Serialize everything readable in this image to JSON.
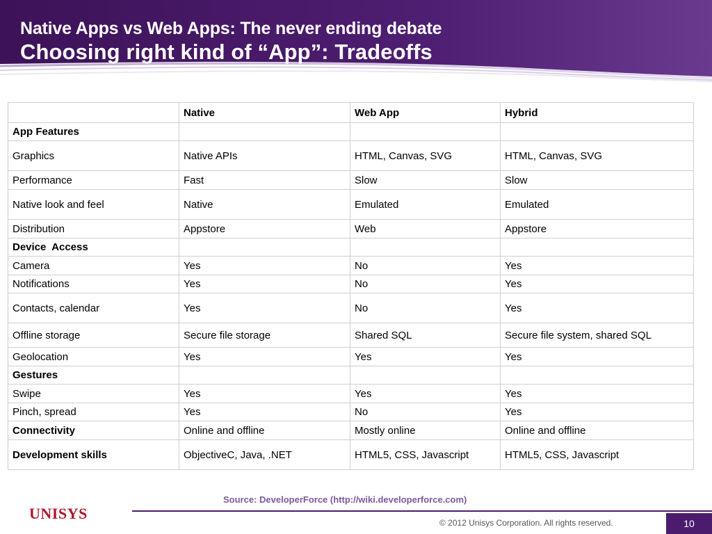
{
  "header": {
    "title_line1": "Native Apps vs Web Apps: The never ending debate",
    "title_line2": "Choosing right kind of “App”: Tradeoffs"
  },
  "table": {
    "headers": [
      "",
      "Native",
      "Web App",
      "Hybrid"
    ],
    "rows": [
      {
        "cells": [
          "App Features",
          "",
          "",
          ""
        ],
        "section": true
      },
      {
        "cells": [
          "Graphics",
          "Native APIs",
          "HTML, Canvas, SVG",
          "HTML, Canvas, SVG"
        ]
      },
      {
        "cells": [
          "Performance",
          "Fast",
          "Slow",
          "Slow"
        ]
      },
      {
        "cells": [
          "Native look and feel",
          "Native",
          "Emulated",
          "Emulated"
        ]
      },
      {
        "cells": [
          "Distribution",
          "Appstore",
          "Web",
          "Appstore"
        ]
      },
      {
        "cells": [
          "Device  Access",
          "",
          "",
          ""
        ],
        "section": true
      },
      {
        "cells": [
          "Camera",
          "Yes",
          "No",
          "Yes"
        ]
      },
      {
        "cells": [
          "Notifications",
          "Yes",
          "No",
          "Yes"
        ]
      },
      {
        "cells": [
          "Contacts, calendar",
          "Yes",
          "No",
          "Yes"
        ]
      },
      {
        "cells": [
          "Offline storage",
          "Secure file storage",
          "Shared SQL",
          "Secure file system, shared SQL"
        ]
      },
      {
        "cells": [
          "Geolocation",
          "Yes",
          "Yes",
          "Yes"
        ]
      },
      {
        "cells": [
          "Gestures",
          "",
          "",
          ""
        ],
        "section": true
      },
      {
        "cells": [
          "Swipe",
          "Yes",
          "Yes",
          "Yes"
        ]
      },
      {
        "cells": [
          "Pinch, spread",
          "Yes",
          "No",
          "Yes"
        ]
      },
      {
        "cells": [
          "Connectivity",
          "Online and offline",
          "Mostly online",
          "Online and offline"
        ],
        "section": true
      },
      {
        "cells": [
          "Development skills",
          "ObjectiveC, Java, .NET",
          "HTML5, CSS, Javascript",
          "HTML5, CSS, Javascript"
        ],
        "section": true
      }
    ]
  },
  "footer": {
    "source": "Source: DeveloperForce (http://wiki.developerforce.com)",
    "logo_text": "UNISYS",
    "copyright": "© 2012 Unisys Corporation. All rights reserved.",
    "page_number": "10"
  },
  "colors": {
    "banner_purple": "#4b1c6e",
    "logo_red": "#b0172b",
    "source_purple": "#7a5a9a"
  }
}
